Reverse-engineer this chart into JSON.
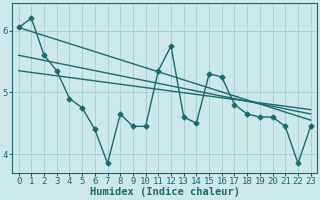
{
  "xlabel": "Humidex (Indice chaleur)",
  "ylabel": "",
  "bg_color": "#cce8e8",
  "line_color": "#1a6b6b",
  "grid_color": "#aed0d0",
  "xlim": [
    -0.5,
    23.5
  ],
  "ylim": [
    3.7,
    6.45
  ],
  "xticks": [
    0,
    1,
    2,
    3,
    4,
    5,
    6,
    7,
    8,
    9,
    10,
    11,
    12,
    13,
    14,
    15,
    16,
    17,
    18,
    19,
    20,
    21,
    22,
    23
  ],
  "yticks": [
    4,
    5,
    6
  ],
  "main_x": [
    0,
    1,
    2,
    3,
    4,
    5,
    6,
    7,
    8,
    9,
    10,
    11,
    12,
    13,
    14,
    15,
    16,
    17,
    18,
    19,
    20,
    21,
    22,
    23
  ],
  "main_y": [
    6.05,
    6.2,
    5.6,
    5.35,
    4.9,
    4.75,
    4.4,
    3.85,
    4.65,
    4.45,
    4.45,
    5.35,
    5.75,
    4.6,
    4.5,
    5.3,
    5.25,
    4.8,
    4.65,
    4.6,
    4.6,
    4.45,
    3.85,
    4.45
  ],
  "trend1_x": [
    0,
    23
  ],
  "trend1_y": [
    6.05,
    4.55
  ],
  "trend2_x": [
    0,
    23
  ],
  "trend2_y": [
    5.6,
    4.65
  ],
  "trend3_x": [
    0,
    23
  ],
  "trend3_y": [
    5.35,
    4.72
  ],
  "marker": "D",
  "marker_size": 2.5,
  "line_width": 1.0,
  "font_size_xlabel": 7.5,
  "font_size_ticks": 6.5
}
